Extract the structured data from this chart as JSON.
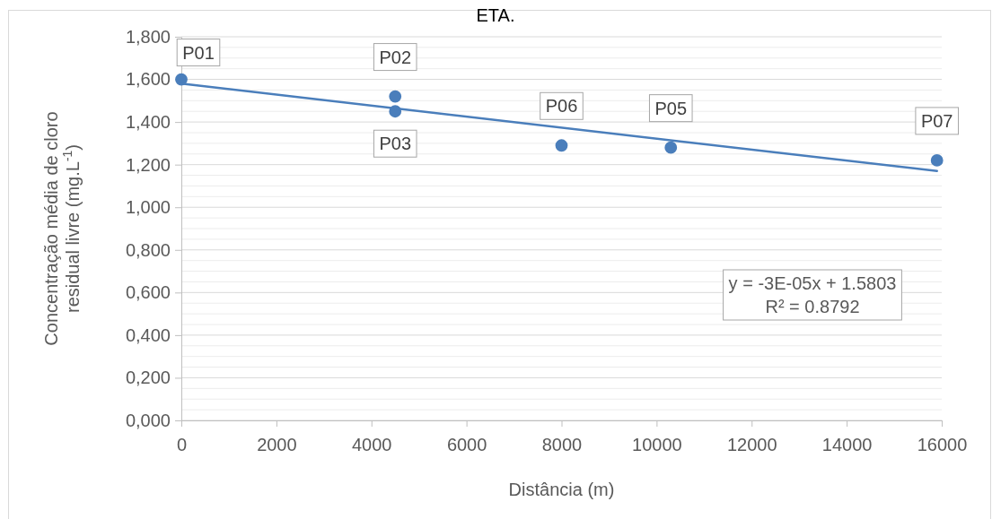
{
  "chart_data": {
    "type": "scatter",
    "title": "ETA.",
    "xlabel": "Distância (m)",
    "ylabel": "Concentração média de cloro residual livre (mg.L$^{-1}$)",
    "series": [
      {
        "color": "#4a7ebb",
        "marker": "circle",
        "x": [
          0,
          4500,
          4500,
          8000,
          10300,
          15900
        ],
        "values": [
          1.6,
          1.52,
          1.45,
          1.29,
          1.28,
          1.22
        ]
      },
      {
        "type": "line",
        "color": "#4a7ebb",
        "line_style": "solid",
        "x": [
          0,
          15900
        ],
        "values": [
          1.58,
          1.17
        ]
      }
    ],
    "annotations": [
      {
        "text": "P01",
        "x": 0,
        "y": 1.6
      },
      {
        "text": "P02",
        "x": 4500,
        "y": 1.52
      },
      {
        "text": "P03",
        "x": 4500,
        "y": 1.45
      },
      {
        "text": "P06",
        "x": 8000,
        "y": 1.29
      },
      {
        "text": "P05",
        "x": 10300,
        "y": 1.28
      },
      {
        "text": "P07",
        "x": 15900,
        "y": 1.22
      },
      "y = -3E-05x + 1.5803\nR² = 0.8792"
    ],
    "xlim": [
      0,
      16000
    ],
    "xticks": [
      0,
      2000,
      4000,
      6000,
      8000,
      10000,
      12000,
      14000,
      16000
    ],
    "ylim": [
      0,
      1.8
    ],
    "yticks": [
      {
        "value": 0,
        "label": "0,000"
      },
      {
        "value": 0.05,
        "label": null
      },
      {
        "value": 0.1,
        "label": null
      },
      {
        "value": 0.15,
        "label": null
      },
      {
        "value": 0.2,
        "label": "0,200"
      },
      {
        "value": 0.25,
        "label": null
      },
      {
        "value": 0.3,
        "label": null
      },
      {
        "value": 0.35,
        "label": null
      },
      {
        "value": 0.4,
        "label": "0,400"
      },
      {
        "value": 0.45,
        "label": null
      },
      {
        "value": 0.5,
        "label": null
      },
      {
        "value": 0.55,
        "label": null
      },
      {
        "value": 0.6,
        "label": "0,600"
      },
      {
        "value": 0.65,
        "label": null
      },
      {
        "value": 0.7,
        "label": null
      },
      {
        "value": 0.75,
        "label": null
      },
      {
        "value": 0.8,
        "label": "0,800"
      },
      {
        "value": 0.85,
        "label": null
      },
      {
        "value": 0.9,
        "label": null
      },
      {
        "value": 0.95,
        "label": null
      },
      {
        "value": 1.0,
        "label": "1,000"
      },
      {
        "value": 1.05,
        "label": null
      },
      {
        "value": 1.1,
        "label": null
      },
      {
        "value": 1.15,
        "label": null
      },
      {
        "value": 1.2,
        "label": "1,200"
      },
      {
        "value": 1.25,
        "label": null
      },
      {
        "value": 1.3,
        "label": null
      },
      {
        "value": 1.35,
        "label": null
      },
      {
        "value": 1.4,
        "label": "1,400"
      },
      {
        "value": 1.45,
        "label": null
      },
      {
        "value": 1.5,
        "label": null
      },
      {
        "value": 1.55,
        "label": null
      },
      {
        "value": 1.6,
        "label": "1,600"
      },
      {
        "value": 1.65,
        "label": null
      },
      {
        "value": 1.7,
        "label": null
      },
      {
        "value": 1.75,
        "label": null
      },
      {
        "value": 1.8,
        "label": "1,800"
      }
    ],
    "grid": "y"
  }
}
